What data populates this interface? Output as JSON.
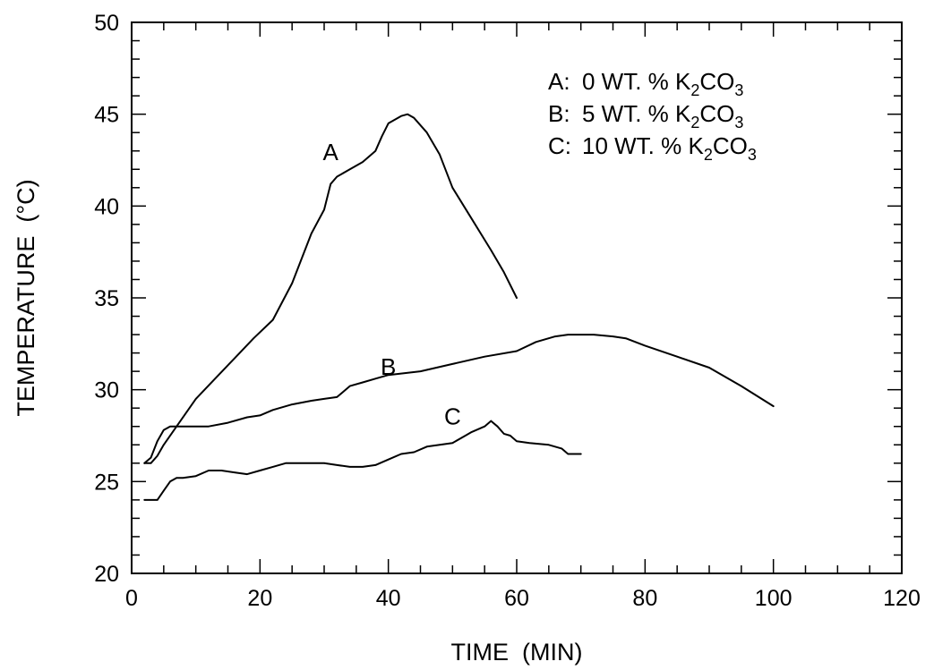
{
  "chart_data": {
    "type": "line",
    "title": "",
    "xlabel": "TIME  (MIN)",
    "ylabel": "TEMPERATURE  (°C)",
    "xlim": [
      0,
      120
    ],
    "ylim": [
      20,
      50
    ],
    "x_ticks": [
      0,
      20,
      40,
      60,
      80,
      100,
      120
    ],
    "y_ticks": [
      20,
      25,
      30,
      35,
      40,
      45,
      50
    ],
    "x_minor_step": 5,
    "y_minor_step": 1,
    "grid": false,
    "legend_position": "top-right",
    "legend": [
      {
        "key": "A:",
        "pre": "  0 WT. % K",
        "sub1": "2",
        "mid": "CO",
        "sub2": "3"
      },
      {
        "key": "B:",
        "pre": "  5 WT. % K",
        "sub1": "2",
        "mid": "CO",
        "sub2": "3"
      },
      {
        "key": "C:",
        "pre": " 10 WT. % K",
        "sub1": "2",
        "mid": "CO",
        "sub2": "3"
      }
    ],
    "series": [
      {
        "name": "A",
        "label": "A",
        "label_at": [
          31,
          42.5
        ],
        "x": [
          2,
          3,
          4,
          5,
          7,
          10,
          13,
          16,
          19,
          22,
          25,
          28,
          30,
          31,
          32,
          34,
          36,
          38,
          39,
          40,
          42,
          43,
          44,
          46,
          48,
          50,
          53,
          56,
          58,
          60
        ],
        "y": [
          26,
          26,
          26.4,
          27,
          28,
          29.5,
          30.6,
          31.7,
          32.8,
          33.8,
          35.8,
          38.5,
          39.8,
          41.2,
          41.6,
          42,
          42.4,
          43,
          43.8,
          44.5,
          44.9,
          45,
          44.8,
          44,
          42.8,
          41,
          39.3,
          37.6,
          36.4,
          35
        ]
      },
      {
        "name": "B",
        "label": "B",
        "label_at": [
          40,
          30.8
        ],
        "x": [
          2,
          3,
          4,
          5,
          6,
          8,
          10,
          12,
          15,
          18,
          20,
          22,
          25,
          28,
          30,
          32,
          34,
          36,
          38,
          40,
          45,
          50,
          55,
          60,
          63,
          66,
          68,
          70,
          72,
          75,
          77,
          80,
          85,
          90,
          95,
          100
        ],
        "y": [
          26,
          26.3,
          27.2,
          27.8,
          28,
          28,
          28,
          28,
          28.2,
          28.5,
          28.6,
          28.9,
          29.2,
          29.4,
          29.5,
          29.6,
          30.2,
          30.4,
          30.6,
          30.8,
          31,
          31.4,
          31.8,
          32.1,
          32.6,
          32.9,
          33,
          33,
          33,
          32.9,
          32.8,
          32.4,
          31.8,
          31.2,
          30.2,
          29.1
        ]
      },
      {
        "name": "C",
        "label": "C",
        "label_at": [
          50,
          28.1
        ],
        "x": [
          2,
          3,
          4,
          5,
          6,
          7,
          8,
          10,
          12,
          14,
          16,
          18,
          20,
          22,
          24,
          26,
          30,
          32,
          34,
          36,
          38,
          40,
          42,
          44,
          46,
          48,
          50,
          52,
          53,
          55,
          56,
          57,
          58,
          59,
          60,
          62,
          65,
          67,
          68,
          70
        ],
        "y": [
          24,
          24,
          24,
          24.5,
          25,
          25.2,
          25.2,
          25.3,
          25.6,
          25.6,
          25.5,
          25.4,
          25.6,
          25.8,
          26,
          26,
          26,
          25.9,
          25.8,
          25.8,
          25.9,
          26.2,
          26.5,
          26.6,
          26.9,
          27,
          27.1,
          27.5,
          27.7,
          28,
          28.3,
          28,
          27.6,
          27.5,
          27.2,
          27.1,
          27,
          26.8,
          26.5,
          26.5
        ]
      }
    ]
  }
}
